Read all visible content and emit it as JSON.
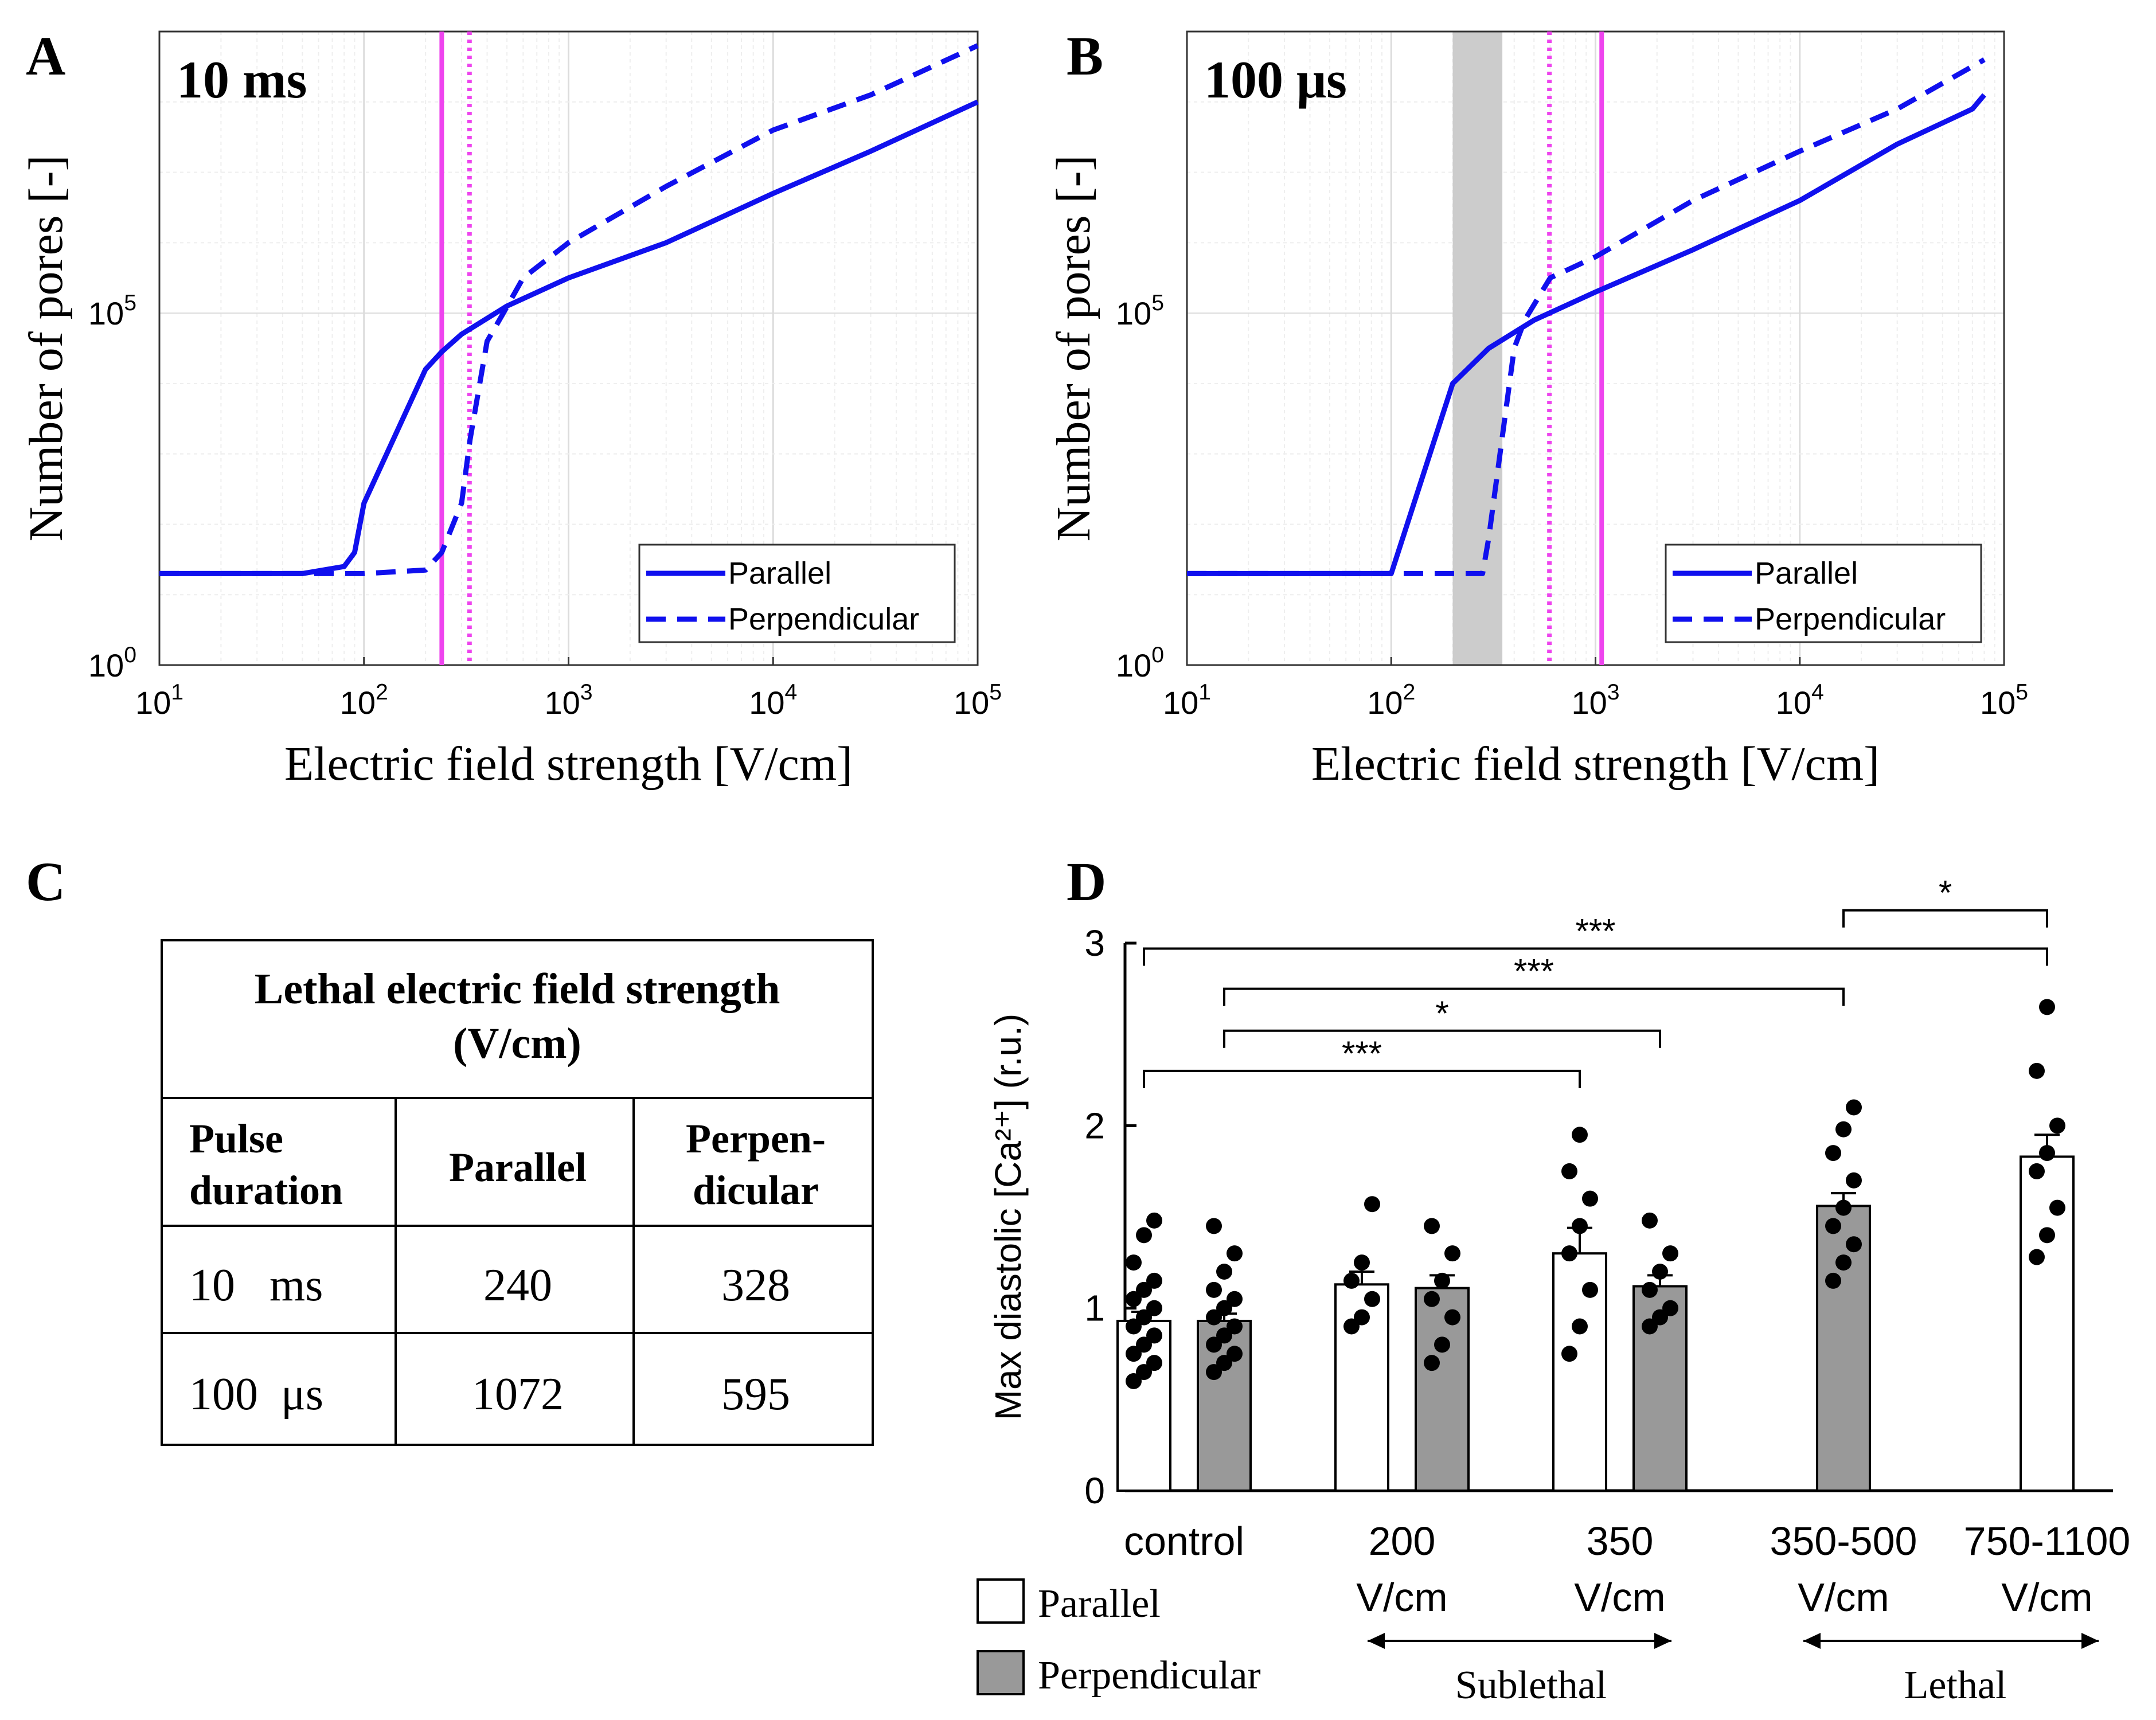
{
  "chart_data": [
    {
      "panel": "A",
      "type": "line",
      "title": "10 ms",
      "xlabel": "Electric field strength [V/cm]",
      "ylabel": "Number of pores [-]",
      "xscale": "log",
      "yscale": "log",
      "xlim": [
        10,
        100000
      ],
      "ylim_exp": [
        0,
        9
      ],
      "xticks": [
        "10^1",
        "10^2",
        "10^3",
        "10^4",
        "10^5"
      ],
      "yticks": [
        "10^0",
        "10^5"
      ],
      "legend_position": "bottom-right",
      "series": [
        {
          "name": "Parallel",
          "style": "solid",
          "x": [
            10,
            50,
            80,
            90,
            100,
            200,
            240,
            300,
            500,
            1000,
            3000,
            10000,
            30000,
            100000
          ],
          "y_exp": [
            1.3,
            1.3,
            1.4,
            1.6,
            2.3,
            4.2,
            4.45,
            4.7,
            5.1,
            5.5,
            6.0,
            6.7,
            7.3,
            8.0
          ]
        },
        {
          "name": "Perpendicular",
          "style": "dashed",
          "x": [
            10,
            50,
            100,
            200,
            240,
            300,
            330,
            400,
            480,
            600,
            1000,
            3000,
            10000,
            30000,
            100000
          ],
          "y_exp": [
            1.3,
            1.3,
            1.3,
            1.35,
            1.6,
            2.3,
            3.2,
            4.6,
            5.0,
            5.5,
            6.0,
            6.8,
            7.6,
            8.1,
            8.8
          ]
        }
      ],
      "vlines": [
        {
          "x": 240,
          "style": "solid",
          "color": "#ee44ee"
        },
        {
          "x": 328,
          "style": "dotted",
          "color": "#ee44ee"
        }
      ]
    },
    {
      "panel": "B",
      "type": "line",
      "title": "100 μs",
      "xlabel": "Electric field strength [V/cm]",
      "ylabel": "Number of pores [-]",
      "xscale": "log",
      "yscale": "log",
      "xlim": [
        10,
        100000
      ],
      "ylim_exp": [
        0,
        9
      ],
      "xticks": [
        "10^1",
        "10^2",
        "10^3",
        "10^4",
        "10^5"
      ],
      "yticks": [
        "10^0",
        "10^5"
      ],
      "legend_position": "bottom-right",
      "shaded_band": [
        200,
        350
      ],
      "series": [
        {
          "name": "Parallel",
          "style": "solid",
          "x": [
            10,
            50,
            100,
            200,
            300,
            500,
            1000,
            3000,
            10000,
            30000,
            70000,
            80000
          ],
          "y_exp": [
            1.3,
            1.3,
            1.3,
            4.0,
            4.5,
            4.9,
            5.3,
            5.9,
            6.6,
            7.4,
            7.9,
            8.1
          ]
        },
        {
          "name": "Perpendicular",
          "style": "dashed",
          "x": [
            10,
            50,
            100,
            200,
            280,
            300,
            400,
            450,
            600,
            1000,
            3000,
            10000,
            30000,
            80000
          ],
          "y_exp": [
            1.3,
            1.3,
            1.3,
            1.3,
            1.3,
            1.8,
            4.5,
            4.9,
            5.5,
            5.8,
            6.6,
            7.3,
            7.9,
            8.6
          ]
        }
      ],
      "vlines": [
        {
          "x": 1072,
          "style": "solid",
          "color": "#ee44ee"
        },
        {
          "x": 595,
          "style": "dotted",
          "color": "#ee44ee"
        }
      ]
    },
    {
      "panel": "D",
      "type": "bar",
      "ylabel": "Max diastolic [Ca²⁺] (r.u.)",
      "ylim": [
        0,
        3
      ],
      "yticks": [
        0,
        1,
        2,
        3
      ],
      "group_labels": [
        [
          "control"
        ],
        [
          "200",
          "V/cm"
        ],
        [
          "350",
          "V/cm"
        ],
        [
          "350-500",
          "V/cm"
        ],
        [
          "750-1100",
          "V/cm"
        ]
      ],
      "bars": [
        {
          "group": 0,
          "kind": "parallel",
          "mean": 0.93,
          "sem": 0.05,
          "points": [
            0.6,
            0.65,
            0.7,
            0.75,
            0.8,
            0.85,
            0.9,
            0.95,
            1.0,
            1.05,
            1.1,
            1.15,
            1.25,
            1.4,
            1.48
          ]
        },
        {
          "group": 0,
          "kind": "perpendicular",
          "mean": 0.93,
          "sem": 0.04,
          "points": [
            0.65,
            0.7,
            0.75,
            0.8,
            0.85,
            0.9,
            0.95,
            1.0,
            1.05,
            1.1,
            1.2,
            1.3,
            1.45
          ]
        },
        {
          "group": 1,
          "kind": "parallel",
          "mean": 1.13,
          "sem": 0.07,
          "points": [
            0.9,
            0.95,
            1.05,
            1.15,
            1.25,
            1.57
          ]
        },
        {
          "group": 1,
          "kind": "perpendicular",
          "mean": 1.11,
          "sem": 0.07,
          "points": [
            0.7,
            0.8,
            0.95,
            1.05,
            1.15,
            1.3,
            1.45
          ]
        },
        {
          "group": 2,
          "kind": "parallel",
          "mean": 1.3,
          "sem": 0.14,
          "points": [
            0.75,
            0.9,
            1.1,
            1.3,
            1.45,
            1.6,
            1.75,
            1.95
          ]
        },
        {
          "group": 2,
          "kind": "perpendicular",
          "mean": 1.12,
          "sem": 0.06,
          "points": [
            0.9,
            0.95,
            1.0,
            1.1,
            1.2,
            1.3,
            1.48
          ]
        },
        {
          "group": 3,
          "kind": "perpendicular",
          "mean": 1.56,
          "sem": 0.07,
          "points": [
            1.15,
            1.25,
            1.35,
            1.45,
            1.55,
            1.7,
            1.85,
            1.98,
            2.1
          ]
        },
        {
          "group": 4,
          "kind": "parallel",
          "mean": 1.83,
          "sem": 0.12,
          "points": [
            1.28,
            1.4,
            1.55,
            1.75,
            1.85,
            2.0,
            2.3,
            2.65
          ]
        }
      ],
      "significance": [
        {
          "from_group": 0,
          "from_kind": "parallel",
          "to_group": 4,
          "to_kind": "parallel",
          "y": 2.97,
          "label": "***"
        },
        {
          "from_group": 0,
          "from_kind": "perpendicular",
          "to_group": 3,
          "to_kind": "perpendicular",
          "y": 2.75,
          "label": "***"
        },
        {
          "from_group": 0,
          "from_kind": "perpendicular",
          "to_group": 2,
          "to_kind": "perpendicular",
          "y": 2.52,
          "label": "*"
        },
        {
          "from_group": 0,
          "from_kind": "parallel",
          "to_group": 2,
          "to_kind": "parallel",
          "y": 2.3,
          "label": "***"
        },
        {
          "from_group": 3,
          "from_kind": "perpendicular",
          "to_group": 4,
          "to_kind": "parallel",
          "y": 3.18,
          "label": "*"
        }
      ]
    }
  ],
  "panels": {
    "a_letter": "A",
    "b_letter": "B",
    "c_letter": "C",
    "d_letter": "D",
    "a_title": "10  ms",
    "b_title": "100  μs"
  },
  "lineplots": {
    "ylabel": "Number of pores [-]",
    "xlabel": "Electric field strength [V/cm]",
    "ytick_0_base": "10",
    "ytick_0_exp": "0",
    "ytick_5_base": "10",
    "ytick_5_exp": "5",
    "xtick_bases": [
      "10",
      "10",
      "10",
      "10",
      "10"
    ],
    "xtick_exps": [
      "1",
      "2",
      "3",
      "4",
      "5"
    ],
    "legend_parallel": "Parallel",
    "legend_perpendicular": "Perpendicular"
  },
  "table": {
    "title_line1": "Lethal electric field strength",
    "title_line2": "(V/cm)",
    "col_header_1a": "Pulse",
    "col_header_1b": "duration",
    "col_header_2": "Parallel",
    "col_header_3a": "Perpen-",
    "col_header_3b": "dicular",
    "row1_duration": "10   ms",
    "row1_parallel": "240",
    "row1_perpendicular": "328",
    "row2_duration": "100  μs",
    "row2_parallel": "1072",
    "row2_perpendicular": "595"
  },
  "barplot": {
    "ylabel": "Max diastolic [Ca²⁺] (r.u.)",
    "yticks": [
      "0",
      "1",
      "2",
      "3"
    ],
    "legend_parallel": "Parallel",
    "legend_perpendicular": "Perpendicular",
    "range_sublethal": "Sublethal",
    "range_lethal": "Lethal"
  },
  "colors": {
    "line": "#1010ee",
    "vline": "#ee44ee",
    "band": "#cccccc",
    "bar_perpendicular": "#999999",
    "bar_parallel": "#ffffff",
    "text": "#000000"
  }
}
